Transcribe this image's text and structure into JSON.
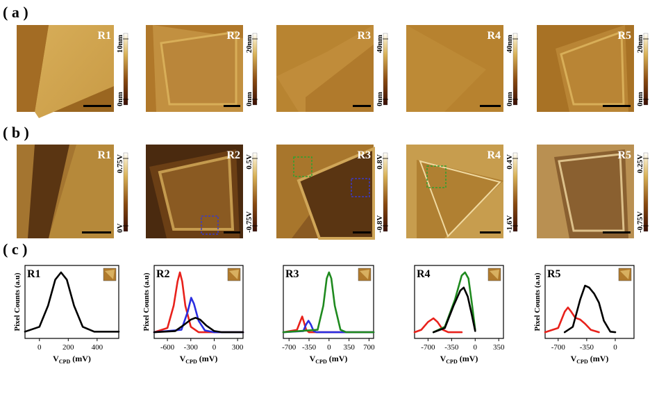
{
  "panel_labels": {
    "a": "( a )",
    "b": "( b )",
    "c": "( c )"
  },
  "row_a": {
    "images": [
      {
        "region": "R1",
        "colorbar_max": "10nm",
        "colorbar_min": "0nm"
      },
      {
        "region": "R2",
        "colorbar_max": "20nm",
        "colorbar_min": "0nm"
      },
      {
        "region": "R3",
        "colorbar_max": "40nm",
        "colorbar_min": "0nm"
      },
      {
        "region": "R4",
        "colorbar_max": "40nm",
        "colorbar_min": "0nm"
      },
      {
        "region": "R5",
        "colorbar_max": "20nm",
        "colorbar_min": "0nm"
      }
    ]
  },
  "row_b": {
    "images": [
      {
        "region": "R1",
        "colorbar_max": "0.75V",
        "colorbar_min": "0V"
      },
      {
        "region": "R2",
        "colorbar_max": "0.5V",
        "colorbar_min": "-0.75V"
      },
      {
        "region": "R3",
        "colorbar_max": "0.8V",
        "colorbar_min": "-0.8V"
      },
      {
        "region": "R4",
        "colorbar_max": "0.4V",
        "colorbar_min": "-1.6V"
      },
      {
        "region": "R5",
        "colorbar_max": "0.25V",
        "colorbar_min": "-0.75V"
      }
    ]
  },
  "colors": {
    "red": "#e8211b",
    "blue": "#2a2ee0",
    "green": "#1f8a1f",
    "black": "#000000",
    "green_box": "#2fa02f",
    "blue_box": "#3a3ac8"
  },
  "chart_data": [
    {
      "type": "line",
      "region": "R1",
      "ylabel": "Pixel Counts (a.u)",
      "xlabel": "V_CPD (mV)",
      "xlim": [
        -100,
        550
      ],
      "xticks": [
        0,
        200,
        400
      ],
      "series": [
        {
          "color": "black",
          "curve": [
            [
              -100,
              0.02
            ],
            [
              0,
              0.1
            ],
            [
              60,
              0.45
            ],
            [
              110,
              0.88
            ],
            [
              150,
              1.0
            ],
            [
              190,
              0.88
            ],
            [
              240,
              0.45
            ],
            [
              300,
              0.1
            ],
            [
              380,
              0.02
            ],
            [
              550,
              0.02
            ]
          ]
        }
      ]
    },
    {
      "type": "line",
      "region": "R2",
      "ylabel": "Pixel Counts (a.u)",
      "xlabel": "V_CPD (mV)",
      "xlim": [
        -770,
        370
      ],
      "xticks": [
        -600,
        -300,
        0,
        300
      ],
      "series": [
        {
          "color": "red",
          "curve": [
            [
              -770,
              0.01
            ],
            [
              -600,
              0.08
            ],
            [
              -520,
              0.45
            ],
            [
              -470,
              0.85
            ],
            [
              -440,
              1.0
            ],
            [
              -410,
              0.85
            ],
            [
              -370,
              0.45
            ],
            [
              -300,
              0.1
            ],
            [
              -200,
              0.01
            ],
            [
              370,
              0.01
            ]
          ]
        },
        {
          "color": "blue",
          "curve": [
            [
              -770,
              0.01
            ],
            [
              -420,
              0.05
            ],
            [
              -340,
              0.35
            ],
            [
              -295,
              0.58
            ],
            [
              -260,
              0.48
            ],
            [
              -200,
              0.2
            ],
            [
              -120,
              0.04
            ],
            [
              0,
              0.01
            ],
            [
              370,
              0.01
            ]
          ]
        },
        {
          "color": "black",
          "curve": [
            [
              -770,
              0.01
            ],
            [
              -500,
              0.03
            ],
            [
              -400,
              0.12
            ],
            [
              -300,
              0.22
            ],
            [
              -240,
              0.25
            ],
            [
              -180,
              0.22
            ],
            [
              -100,
              0.12
            ],
            [
              0,
              0.03
            ],
            [
              100,
              0.01
            ],
            [
              370,
              0.01
            ]
          ]
        }
      ]
    },
    {
      "type": "line",
      "region": "R3",
      "ylabel": "",
      "xlabel": "V_CPD (mV)",
      "xlim": [
        -800,
        780
      ],
      "xticks": [
        -700,
        -350,
        0,
        350,
        700
      ],
      "series": [
        {
          "color": "red",
          "curve": [
            [
              -800,
              0.01
            ],
            [
              -560,
              0.05
            ],
            [
              -500,
              0.2
            ],
            [
              -470,
              0.27
            ],
            [
              -440,
              0.18
            ],
            [
              -400,
              0.05
            ],
            [
              -350,
              0.01
            ],
            [
              780,
              0.01
            ]
          ]
        },
        {
          "color": "blue",
          "curve": [
            [
              -800,
              0.01
            ],
            [
              -450,
              0.03
            ],
            [
              -400,
              0.14
            ],
            [
              -360,
              0.2
            ],
            [
              -320,
              0.14
            ],
            [
              -270,
              0.03
            ],
            [
              -220,
              0.01
            ],
            [
              780,
              0.01
            ]
          ]
        },
        {
          "color": "green",
          "curve": [
            [
              -800,
              0.01
            ],
            [
              -200,
              0.05
            ],
            [
              -100,
              0.45
            ],
            [
              -40,
              0.9
            ],
            [
              0,
              1.0
            ],
            [
              40,
              0.9
            ],
            [
              100,
              0.45
            ],
            [
              200,
              0.05
            ],
            [
              300,
              0.01
            ],
            [
              780,
              0.01
            ]
          ]
        }
      ]
    },
    {
      "type": "line",
      "region": "R4",
      "ylabel": "",
      "xlabel": "V_CPD (mV)",
      "xlim": [
        -900,
        420
      ],
      "xticks": [
        -700,
        -350,
        0,
        350
      ],
      "series": [
        {
          "color": "red",
          "curve": [
            [
              -900,
              0.01
            ],
            [
              -800,
              0.05
            ],
            [
              -700,
              0.18
            ],
            [
              -620,
              0.24
            ],
            [
              -560,
              0.18
            ],
            [
              -480,
              0.05
            ],
            [
              -400,
              0.01
            ],
            [
              -200,
              0.01
            ]
          ]
        },
        {
          "color": "green",
          "curve": [
            [
              -620,
              0.01
            ],
            [
              -450,
              0.1
            ],
            [
              -300,
              0.55
            ],
            [
              -200,
              0.95
            ],
            [
              -150,
              1.0
            ],
            [
              -100,
              0.9
            ],
            [
              -50,
              0.5
            ],
            [
              0,
              0.05
            ]
          ]
        },
        {
          "color": "black",
          "curve": [
            [
              -620,
              0.01
            ],
            [
              -450,
              0.08
            ],
            [
              -320,
              0.45
            ],
            [
              -220,
              0.7
            ],
            [
              -170,
              0.75
            ],
            [
              -110,
              0.6
            ],
            [
              -50,
              0.3
            ],
            [
              0,
              0.03
            ]
          ]
        }
      ]
    },
    {
      "type": "line",
      "region": "R5",
      "ylabel": "Pixel Counts (a.u)",
      "xlabel": "V_CPD (mV)",
      "xlim": [
        -860,
        230
      ],
      "xticks": [
        -700,
        -350,
        0
      ],
      "series": [
        {
          "color": "red",
          "curve": [
            [
              -860,
              0.01
            ],
            [
              -700,
              0.08
            ],
            [
              -620,
              0.35
            ],
            [
              -580,
              0.42
            ],
            [
              -540,
              0.35
            ],
            [
              -490,
              0.25
            ],
            [
              -430,
              0.22
            ],
            [
              -370,
              0.15
            ],
            [
              -300,
              0.05
            ],
            [
              -200,
              0.01
            ]
          ]
        },
        {
          "color": "black",
          "curve": [
            [
              -620,
              0.01
            ],
            [
              -520,
              0.1
            ],
            [
              -430,
              0.55
            ],
            [
              -370,
              0.78
            ],
            [
              -320,
              0.75
            ],
            [
              -260,
              0.65
            ],
            [
              -200,
              0.5
            ],
            [
              -140,
              0.2
            ],
            [
              -60,
              0.02
            ],
            [
              0,
              0.01
            ]
          ]
        }
      ]
    }
  ]
}
